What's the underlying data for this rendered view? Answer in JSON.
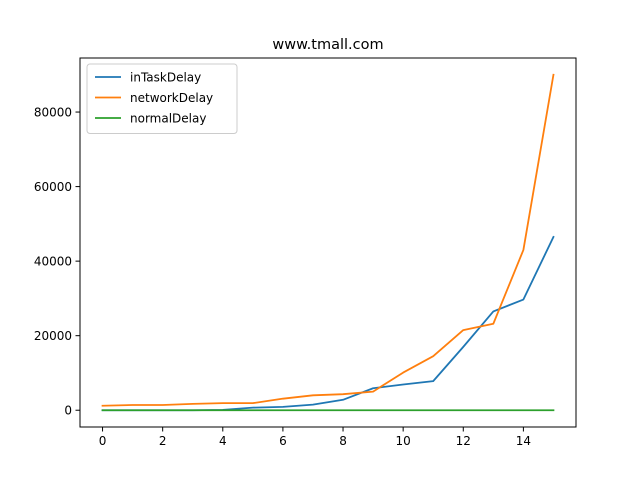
{
  "chart_data": {
    "type": "line",
    "title": "www.tmall.com",
    "xlabel": "",
    "ylabel": "",
    "x": [
      0,
      1,
      2,
      3,
      4,
      5,
      6,
      7,
      8,
      9,
      10,
      11,
      12,
      13,
      14,
      15
    ],
    "xlim": [
      -0.75,
      15.75
    ],
    "ylim": [
      -4500,
      94500
    ],
    "xticks": [
      0,
      2,
      4,
      6,
      8,
      10,
      12,
      14
    ],
    "yticks": [
      0,
      20000,
      40000,
      60000,
      80000
    ],
    "legend_position": "top-left",
    "grid": false,
    "series": [
      {
        "name": "inTaskDelay",
        "color": "#1f77b4",
        "values": [
          0,
          0,
          0,
          0,
          100,
          700,
          900,
          1500,
          2800,
          5900,
          6900,
          7800,
          17000,
          26500,
          29700,
          46500
        ]
      },
      {
        "name": "networkDelay",
        "color": "#ff7f0e",
        "values": [
          1200,
          1400,
          1400,
          1700,
          1900,
          1900,
          3100,
          4000,
          4300,
          5000,
          10100,
          14500,
          21500,
          23200,
          43000,
          90000
        ]
      },
      {
        "name": "normalDelay",
        "color": "#2ca02c",
        "values": [
          0,
          0,
          0,
          0,
          0,
          0,
          0,
          0,
          0,
          0,
          0,
          0,
          0,
          0,
          0,
          0
        ]
      }
    ]
  }
}
